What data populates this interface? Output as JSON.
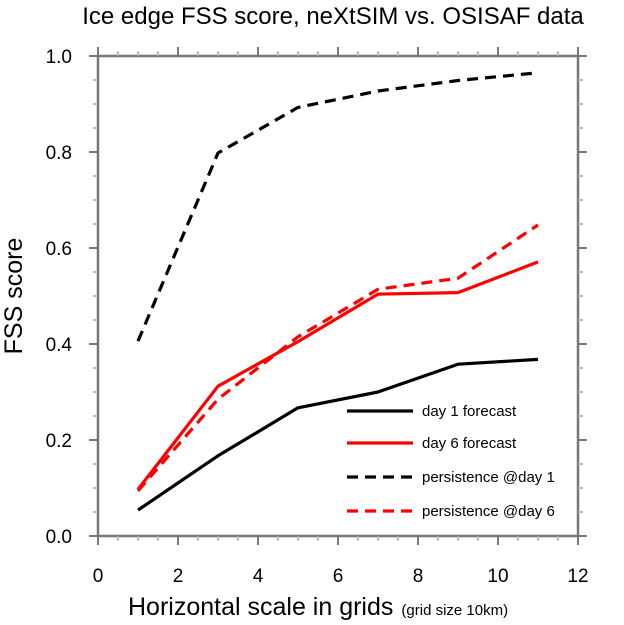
{
  "chart_data": {
    "type": "line",
    "title": "Ice edge FSS score, neXtSIM vs. OSISAF data",
    "xlabel": "Horizontal scale in grids",
    "xlabel_suffix": "(grid size 10km)",
    "ylabel": "FSS score",
    "xlim": [
      0,
      12
    ],
    "ylim": [
      0.0,
      1.0
    ],
    "x_major_ticks": [
      0,
      2,
      4,
      6,
      8,
      10,
      12
    ],
    "x_tick_labels": [
      "0",
      "2",
      "4",
      "6",
      "8",
      "10",
      "12"
    ],
    "x_minor_step": 0.5,
    "y_major_ticks": [
      0.0,
      0.2,
      0.4,
      0.6,
      0.8,
      1.0
    ],
    "y_tick_labels": [
      "0.0",
      "0.2",
      "0.4",
      "0.6",
      "0.8",
      "1.0"
    ],
    "y_minor_step": 0.05,
    "grid": false,
    "legend_position": "bottom-right",
    "x": [
      1,
      3,
      5,
      7,
      9,
      11
    ],
    "series": [
      {
        "name": "day 1 forecast",
        "color": "#000000",
        "dash": "solid",
        "values": [
          0.054,
          0.167,
          0.267,
          0.3,
          0.358,
          0.368
        ]
      },
      {
        "name": "day 6 forecast",
        "color": "#ff0000",
        "dash": "solid",
        "values": [
          0.097,
          0.312,
          0.405,
          0.504,
          0.507,
          0.571
        ]
      },
      {
        "name": "persistence @day 1",
        "color": "#000000",
        "dash": "dashed",
        "values": [
          0.406,
          0.798,
          0.893,
          0.927,
          0.949,
          0.965
        ]
      },
      {
        "name": "persistence @day 6",
        "color": "#ff0000",
        "dash": "dashed",
        "values": [
          0.094,
          0.285,
          0.415,
          0.514,
          0.537,
          0.648
        ]
      }
    ]
  },
  "colors": {
    "axis": "#777777"
  }
}
